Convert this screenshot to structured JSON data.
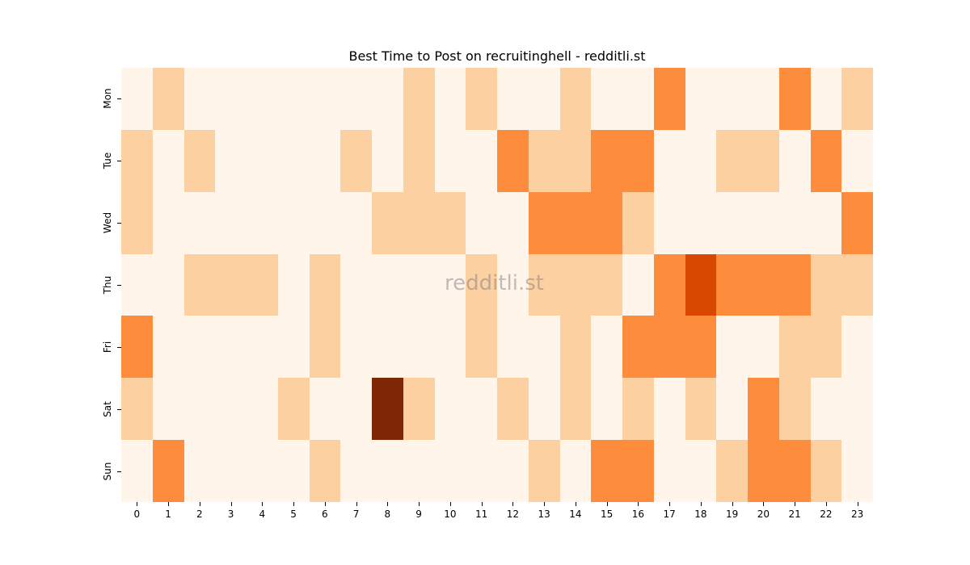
{
  "chart_data": {
    "type": "heatmap",
    "title": "Best Time to Post on recruitinghell - redditli.st",
    "xlabel": "",
    "ylabel": "",
    "x": [
      "0",
      "1",
      "2",
      "3",
      "4",
      "5",
      "6",
      "7",
      "8",
      "9",
      "10",
      "11",
      "12",
      "13",
      "14",
      "15",
      "16",
      "17",
      "18",
      "19",
      "20",
      "21",
      "22",
      "23"
    ],
    "y": [
      "Mon",
      "Tue",
      "Wed",
      "Thu",
      "Fri",
      "Sat",
      "Sun"
    ],
    "values": [
      [
        0,
        1,
        0,
        0,
        0,
        0,
        0,
        0,
        0,
        1,
        0,
        1,
        0,
        0,
        1,
        0,
        0,
        2,
        0,
        0,
        0,
        2,
        0,
        1
      ],
      [
        1,
        0,
        1,
        0,
        0,
        0,
        0,
        1,
        0,
        1,
        0,
        0,
        2,
        1,
        1,
        2,
        2,
        0,
        0,
        1,
        1,
        0,
        2,
        0
      ],
      [
        1,
        0,
        0,
        0,
        0,
        0,
        0,
        0,
        1,
        1,
        1,
        0,
        0,
        2,
        2,
        2,
        1,
        0,
        0,
        0,
        0,
        0,
        0,
        2
      ],
      [
        0,
        0,
        1,
        1,
        1,
        0,
        1,
        0,
        0,
        0,
        0,
        1,
        0,
        1,
        1,
        1,
        0,
        2,
        3,
        2,
        2,
        2,
        1,
        1
      ],
      [
        2,
        0,
        0,
        0,
        0,
        0,
        1,
        0,
        0,
        0,
        0,
        1,
        0,
        0,
        1,
        0,
        2,
        2,
        2,
        0,
        0,
        1,
        1,
        0
      ],
      [
        1,
        0,
        0,
        0,
        0,
        1,
        0,
        0,
        4,
        1,
        0,
        0,
        1,
        0,
        1,
        0,
        1,
        0,
        1,
        0,
        2,
        1,
        0,
        0
      ],
      [
        0,
        2,
        0,
        0,
        0,
        0,
        1,
        0,
        0,
        0,
        0,
        0,
        0,
        1,
        0,
        2,
        2,
        0,
        0,
        1,
        2,
        2,
        1,
        0
      ]
    ],
    "colormap": "Oranges",
    "color_levels": [
      "#fff5eb",
      "#fdd0a2",
      "#fd8d3c",
      "#d94801",
      "#7f2704"
    ],
    "colorbar": false,
    "grid": false,
    "annotations": [
      "redditli.st"
    ]
  },
  "watermark": "redditli.st"
}
